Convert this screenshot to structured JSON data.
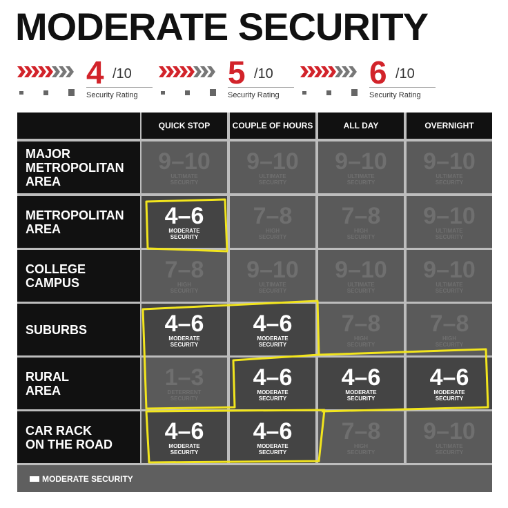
{
  "header": {
    "title": "MODERATE SECURITY",
    "ratings": [
      {
        "score": 4,
        "scale": "/10",
        "label": "Security Rating"
      },
      {
        "score": 5,
        "scale": "/10",
        "label": "Security Rating"
      },
      {
        "score": 6,
        "scale": "/10",
        "label": "Security Rating"
      }
    ]
  },
  "table": {
    "columns": [
      "QUICK STOP",
      "COUPLE OF HOURS",
      "ALL DAY",
      "OVERNIGHT"
    ],
    "rows": [
      {
        "label": "MAJOR\nMETROPOLITAN\nAREA",
        "cells": [
          {
            "range": "9–10",
            "label": "ULTIMATE\nSECURITY",
            "active": false
          },
          {
            "range": "9–10",
            "label": "ULTIMATE\nSECURITY",
            "active": false
          },
          {
            "range": "9–10",
            "label": "ULTIMATE\nSECURITY",
            "active": false
          },
          {
            "range": "9–10",
            "label": "ULTIMATE\nSECURITY",
            "active": false
          }
        ]
      },
      {
        "label": "METROPOLITAN\nAREA",
        "cells": [
          {
            "range": "4–6",
            "label": "MODERATE\nSECURITY",
            "active": true
          },
          {
            "range": "7–8",
            "label": "HIGH\nSECURITY",
            "active": false
          },
          {
            "range": "7–8",
            "label": "HIGH\nSECURITY",
            "active": false
          },
          {
            "range": "9–10",
            "label": "ULTIMATE\nSECURITY",
            "active": false
          }
        ]
      },
      {
        "label": "COLLEGE\nCAMPUS",
        "cells": [
          {
            "range": "7–8",
            "label": "HIGH\nSECURITY",
            "active": false
          },
          {
            "range": "9–10",
            "label": "ULTIMATE\nSECURITY",
            "active": false
          },
          {
            "range": "9–10",
            "label": "ULTIMATE\nSECURITY",
            "active": false
          },
          {
            "range": "9–10",
            "label": "ULTIMATE\nSECURITY",
            "active": false
          }
        ]
      },
      {
        "label": "SUBURBS",
        "cells": [
          {
            "range": "4–6",
            "label": "MODERATE\nSECURITY",
            "active": true
          },
          {
            "range": "4–6",
            "label": "MODERATE\nSECURITY",
            "active": true
          },
          {
            "range": "7–8",
            "label": "HIGH\nSECURITY",
            "active": false
          },
          {
            "range": "7–8",
            "label": "HIGH\nSECURITY",
            "active": false
          }
        ]
      },
      {
        "label": "RURAL\nAREA",
        "cells": [
          {
            "range": "1–3",
            "label": "DETERRENT\nSECURITY",
            "active": false
          },
          {
            "range": "4–6",
            "label": "MODERATE\nSECURITY",
            "active": true
          },
          {
            "range": "4–6",
            "label": "MODERATE\nSECURITY",
            "active": true
          },
          {
            "range": "4–6",
            "label": "MODERATE\nSECURITY",
            "active": true
          }
        ]
      },
      {
        "label": "CAR RACK\nON THE ROAD",
        "cells": [
          {
            "range": "4–6",
            "label": "MODERATE\nSECURITY",
            "active": true
          },
          {
            "range": "4–6",
            "label": "MODERATE\nSECURITY",
            "active": true
          },
          {
            "range": "7–8",
            "label": "HIGH\nSECURITY",
            "active": false
          },
          {
            "range": "9–10",
            "label": "ULTIMATE\nSECURITY",
            "active": false
          }
        ]
      }
    ]
  },
  "legend": "MODERATE SECURITY"
}
